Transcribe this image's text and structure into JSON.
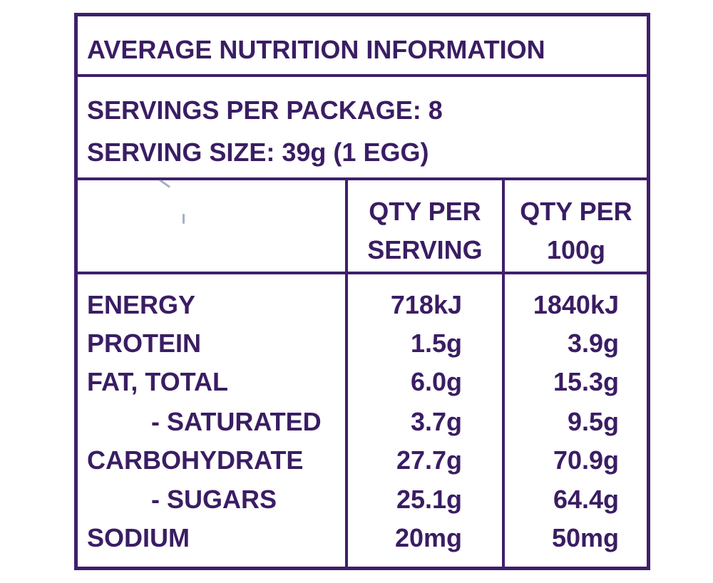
{
  "title": "AVERAGE NUTRITION INFORMATION",
  "servings_per_package": "SERVINGS PER PACKAGE: 8",
  "serving_size": "SERVING SIZE: 39g (1 EGG)",
  "columns": {
    "per_serving_line1": "QTY PER",
    "per_serving_line2": "SERVING",
    "per_100g_line1": "QTY PER",
    "per_100g_line2": "100g"
  },
  "rows": [
    {
      "label": "ENERGY",
      "per_serving": "718kJ",
      "per_100g": "1840kJ"
    },
    {
      "label": "PROTEIN",
      "per_serving": "1.5g",
      "per_100g": "3.9g"
    },
    {
      "label": "FAT, TOTAL",
      "per_serving": "6.0g",
      "per_100g": "15.3g"
    },
    {
      "label": "- SATURATED",
      "per_serving": "3.7g",
      "per_100g": "9.5g"
    },
    {
      "label": "CARBOHYDRATE",
      "per_serving": "27.7g",
      "per_100g": "70.9g"
    },
    {
      "label": "- SUGARS",
      "per_serving": "25.1g",
      "per_100g": "64.4g"
    },
    {
      "label": "SODIUM",
      "per_serving": "20mg",
      "per_100g": "50mg"
    }
  ],
  "colors": {
    "ink": "#3a1d63",
    "border": "#3f1f6b",
    "background": "#ffffff"
  }
}
